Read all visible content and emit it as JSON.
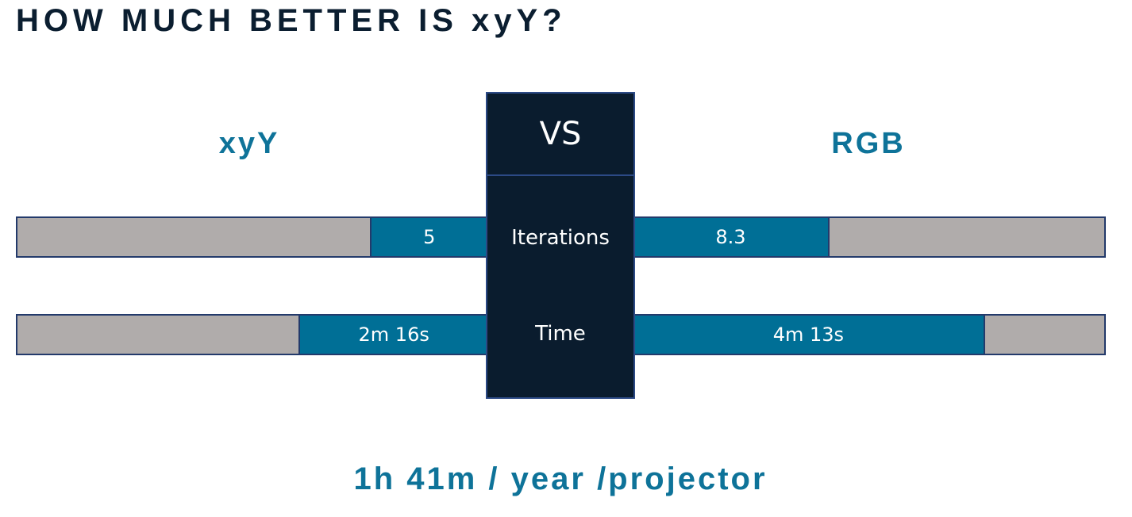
{
  "title": "HOW MUCH BETTER IS xyY?",
  "footer": "1h 41m / year /projector",
  "colors": {
    "title": "#0b1e30",
    "accent": "#0e7399",
    "bar_fill": "#006f96",
    "bar_track": "#b0acab",
    "center_box": "#0a1c2e"
  },
  "chart_data": {
    "type": "bar",
    "orientation": "horizontal-butterfly",
    "vs_label": "VS",
    "left_series": "xyY",
    "right_series": "RGB",
    "metrics": [
      {
        "name": "Iterations",
        "left_value": 5,
        "left_label": "5",
        "right_value": 8.3,
        "right_label": "8.3",
        "max": 20
      },
      {
        "name": "Time",
        "left_value": 136,
        "left_label": "2m 16s",
        "right_value": 253,
        "right_label": "4m 13s",
        "max": 340
      }
    ]
  }
}
